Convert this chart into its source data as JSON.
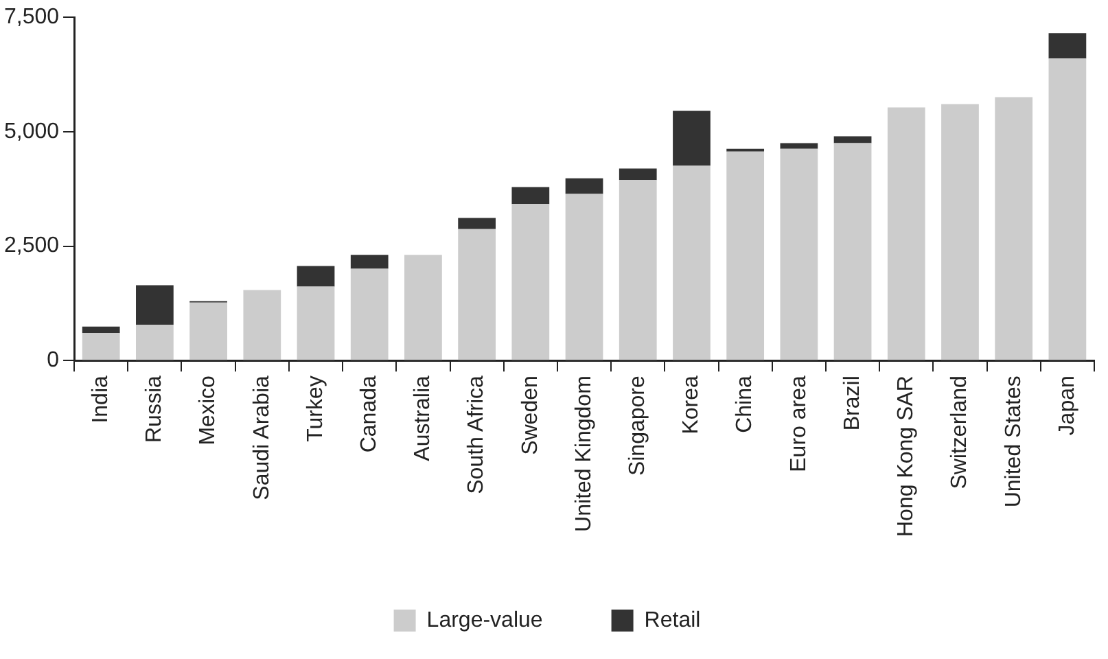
{
  "chart_data": {
    "type": "bar",
    "stacked": true,
    "legend": "bottom",
    "grid": false,
    "categories": [
      "India",
      "Russia",
      "Mexico",
      "Saudi Arabia",
      "Turkey",
      "Canada",
      "Australia",
      "South Africa",
      "Sweden",
      "United Kingdom",
      "Singapore",
      "Korea",
      "China",
      "Euro area",
      "Brazil",
      "Hong Kong SAR",
      "Switzerland",
      "United States",
      "Japan"
    ],
    "series": [
      {
        "name": "Large-value",
        "color": "#cccccc",
        "values": [
          600,
          780,
          1265,
          1540,
          1615,
          2005,
          2310,
          2870,
          3420,
          3640,
          3945,
          4255,
          4565,
          4625,
          4750,
          5530,
          5600,
          5755,
          6600
        ]
      },
      {
        "name": "Retail",
        "color": "#333333",
        "values": [
          140,
          865,
          30,
          0,
          450,
          305,
          0,
          245,
          370,
          340,
          250,
          1200,
          60,
          125,
          150,
          0,
          0,
          0,
          555
        ]
      }
    ],
    "ylim": [
      0,
      7500
    ],
    "yticks": [
      {
        "value": 0,
        "label": "0"
      },
      {
        "value": 2500,
        "label": "2,500"
      },
      {
        "value": 5000,
        "label": "5,000"
      },
      {
        "value": 7500,
        "label": "7,500"
      }
    ]
  }
}
